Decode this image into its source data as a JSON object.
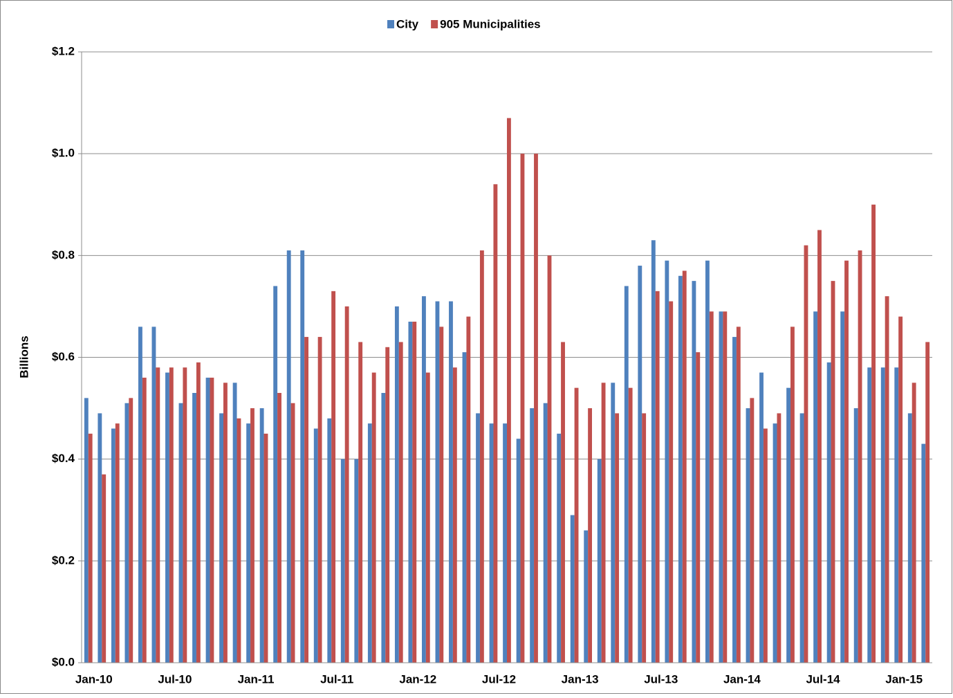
{
  "chart_data": {
    "type": "bar",
    "y_label": "Billions",
    "categories": [
      "Jan-10",
      null,
      null,
      null,
      null,
      null,
      "Jul-10",
      null,
      null,
      null,
      null,
      null,
      "Jan-11",
      null,
      null,
      null,
      null,
      null,
      "Jul-11",
      null,
      null,
      null,
      null,
      null,
      "Jan-12",
      null,
      null,
      null,
      null,
      null,
      "Jul-12",
      null,
      null,
      null,
      null,
      null,
      "Jan-13",
      null,
      null,
      null,
      null,
      null,
      "Jul-13",
      null,
      null,
      null,
      null,
      null,
      "Jan-14",
      null,
      null,
      null,
      null,
      null,
      "Jul-14",
      null,
      null,
      null,
      null,
      null,
      "Jan-15",
      null,
      null
    ],
    "series": [
      {
        "name": "City",
        "color": "#4f81bd",
        "values": [
          0.52,
          0.49,
          0.46,
          0.51,
          0.66,
          0.66,
          0.57,
          0.51,
          0.53,
          0.56,
          0.49,
          0.55,
          0.47,
          0.5,
          0.74,
          0.81,
          0.81,
          0.46,
          0.48,
          0.4,
          0.4,
          0.47,
          0.53,
          0.7,
          0.67,
          0.72,
          0.71,
          0.71,
          0.61,
          0.49,
          0.47,
          0.47,
          0.44,
          0.5,
          0.51,
          0.45,
          0.29,
          0.26,
          0.4,
          0.55,
          0.74,
          0.78,
          0.83,
          0.79,
          0.76,
          0.75,
          0.79,
          0.69,
          0.64,
          0.5,
          0.57,
          0.47,
          0.54,
          0.49,
          0.69,
          0.59,
          0.69,
          0.5,
          0.58,
          0.58,
          0.58,
          0.49,
          0.43
        ]
      },
      {
        "name": "905 Municipalities",
        "color": "#c0504d",
        "values": [
          0.45,
          0.37,
          0.47,
          0.52,
          0.56,
          0.58,
          0.58,
          0.58,
          0.59,
          0.56,
          0.55,
          0.48,
          0.5,
          0.45,
          0.53,
          0.51,
          0.64,
          0.64,
          0.73,
          0.7,
          0.63,
          0.57,
          0.62,
          0.63,
          0.67,
          0.57,
          0.66,
          0.58,
          0.68,
          0.81,
          0.94,
          1.07,
          1.0,
          1.0,
          0.8,
          0.63,
          0.54,
          0.5,
          0.55,
          0.49,
          0.54,
          0.49,
          0.73,
          0.71,
          0.77,
          0.61,
          0.69,
          0.69,
          0.66,
          0.52,
          0.46,
          0.49,
          0.66,
          0.82,
          0.85,
          0.75,
          0.79,
          0.81,
          0.9,
          0.72,
          0.68,
          0.55,
          0.63
        ]
      }
    ],
    "ylim": [
      0,
      1.2
    ],
    "yticks": [
      {
        "value": 0,
        "label": "$0.0"
      },
      {
        "value": 0.2,
        "label": "$0.2"
      },
      {
        "value": 0.4,
        "label": "$0.4"
      },
      {
        "value": 0.6,
        "label": "$0.6"
      },
      {
        "value": 0.8,
        "label": "$0.8"
      },
      {
        "value": 1.0,
        "label": "$1.0"
      },
      {
        "value": 1.2,
        "label": "$1.2"
      }
    ],
    "grid": true,
    "legend": "top"
  }
}
